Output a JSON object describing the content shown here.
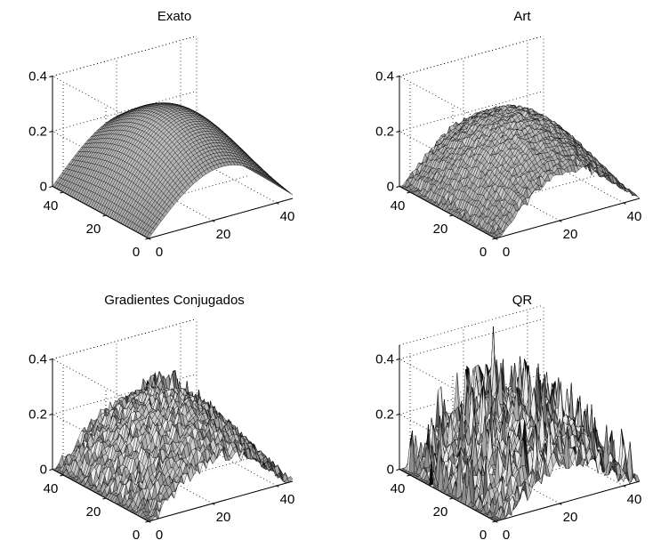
{
  "chart_data": [
    {
      "type": "surface",
      "title": "Exato",
      "surface": "exact",
      "x_ticks": [
        "0",
        "20",
        "40"
      ],
      "y_ticks": [
        "0",
        "20",
        "40"
      ],
      "z_ticks": [
        "0",
        "0.2",
        "0.4"
      ],
      "xlim": [
        0,
        45
      ],
      "ylim": [
        0,
        45
      ],
      "zlim": [
        0,
        0.4
      ],
      "grid": true
    },
    {
      "type": "surface",
      "title": "Art",
      "surface": "art",
      "x_ticks": [
        "0",
        "20",
        "40"
      ],
      "y_ticks": [
        "0",
        "20",
        "40"
      ],
      "z_ticks": [
        "0",
        "0.2",
        "0.4"
      ],
      "xlim": [
        0,
        45
      ],
      "ylim": [
        0,
        45
      ],
      "zlim": [
        0,
        0.4
      ],
      "grid": true
    },
    {
      "type": "surface",
      "title": "Gradientes Conjugados",
      "surface": "cg",
      "x_ticks": [
        "0",
        "20",
        "40"
      ],
      "y_ticks": [
        "0",
        "20",
        "40"
      ],
      "z_ticks": [
        "0",
        "0.2",
        "0.4"
      ],
      "xlim": [
        0,
        45
      ],
      "ylim": [
        0,
        45
      ],
      "zlim": [
        0,
        0.4
      ],
      "grid": true
    },
    {
      "type": "surface",
      "title": "QR",
      "surface": "qr",
      "x_ticks": [
        "0",
        "20",
        "40"
      ],
      "y_ticks": [
        "0",
        "20",
        "40"
      ],
      "z_ticks": [
        "0",
        "0.2",
        "0.4"
      ],
      "xlim": [
        0,
        45
      ],
      "ylim": [
        0,
        45
      ],
      "zlim": [
        0,
        0.45
      ],
      "grid": true
    }
  ]
}
